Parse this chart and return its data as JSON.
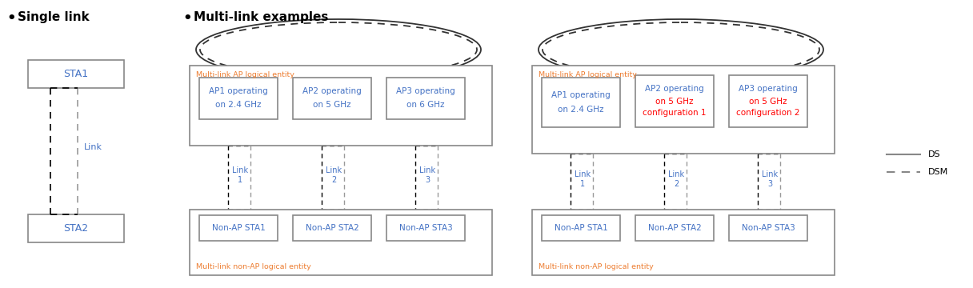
{
  "bg_color": "#ffffff",
  "text_color_black": "#000000",
  "text_color_blue": "#4472C4",
  "text_color_orange": "#ED7D31",
  "text_color_red": "#FF0000",
  "text_color_gray": "#808080",
  "box_edge_color": "#666666",
  "dashed_black": "#000000",
  "dashed_gray": "#999999",
  "ellipse_color": "#333333",
  "legend_line_color": "#888888",
  "single_link_title": "Single link",
  "multi_link_title": "Multi-link examples",
  "sta1_label": "STA1",
  "sta2_label": "STA2",
  "link_label": "Link",
  "ap_outer_label": "Multi-link AP logical entity",
  "nonap_outer_label": "Multi-link non-AP logical entity",
  "ap1_line1": "AP1 operating",
  "ap1_line2": "on 2.4 GHz",
  "ap2_line1": "AP2 operating",
  "ap2_line2": "on 5 GHz",
  "ap3_line1": "AP3 operating",
  "ap3_line2": "on 6 GHz",
  "ap2b_line2": "on 5 GHz",
  "ap2b_line3": "configuration 1",
  "ap3b_line2": "on 5 GHz",
  "ap3b_line3": "configuration 2",
  "nonap1_label": "Non-AP STA1",
  "nonap2_label": "Non-AP STA2",
  "nonap3_label": "Non-AP STA3",
  "link1_label": "Link\n1",
  "link2_label": "Link\n2",
  "link3_label": "Link\n3",
  "ds_label": "DS",
  "dsm_label": "DSM"
}
